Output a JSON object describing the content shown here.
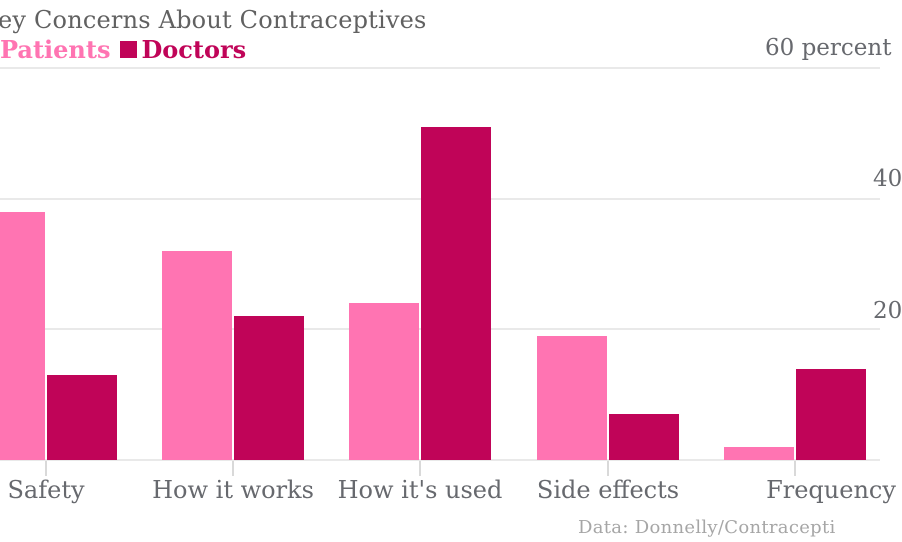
{
  "title": "ey Concerns About Contraceptives",
  "legend": {
    "patients_label": "Patients",
    "doctors_label": "Doctors"
  },
  "y_axis": {
    "top_label": "60 percent",
    "tick_40": "40",
    "tick_20": "20"
  },
  "source": "Data: Donnelly/Contracepti",
  "colors": {
    "patients": "#ff74b2",
    "doctors": "#c00458",
    "grid": "#e9e9e9",
    "tickmark": "#d9d9d9",
    "title_text": "#616161",
    "axis_text": "#67696e",
    "source_text": "#a6a6a6",
    "background": "#ffffff"
  },
  "chart_data": {
    "type": "bar",
    "title": "ey Concerns About Contraceptives",
    "categories": [
      "Safety",
      "How it works",
      "How it's used",
      "Side effects",
      "Frequency"
    ],
    "series": [
      {
        "name": "Patients",
        "color": "#ff74b2",
        "values": [
          38,
          32,
          24,
          19,
          2
        ]
      },
      {
        "name": "Doctors",
        "color": "#c00458",
        "values": [
          13,
          22,
          51,
          7,
          14
        ]
      }
    ],
    "ylabel": "percent",
    "ylim": [
      0,
      60
    ],
    "gridlines": [
      20,
      40,
      60
    ],
    "grid": true,
    "legend_position": "top-left",
    "source_note": "Data: Donnelly/Contracepti"
  }
}
